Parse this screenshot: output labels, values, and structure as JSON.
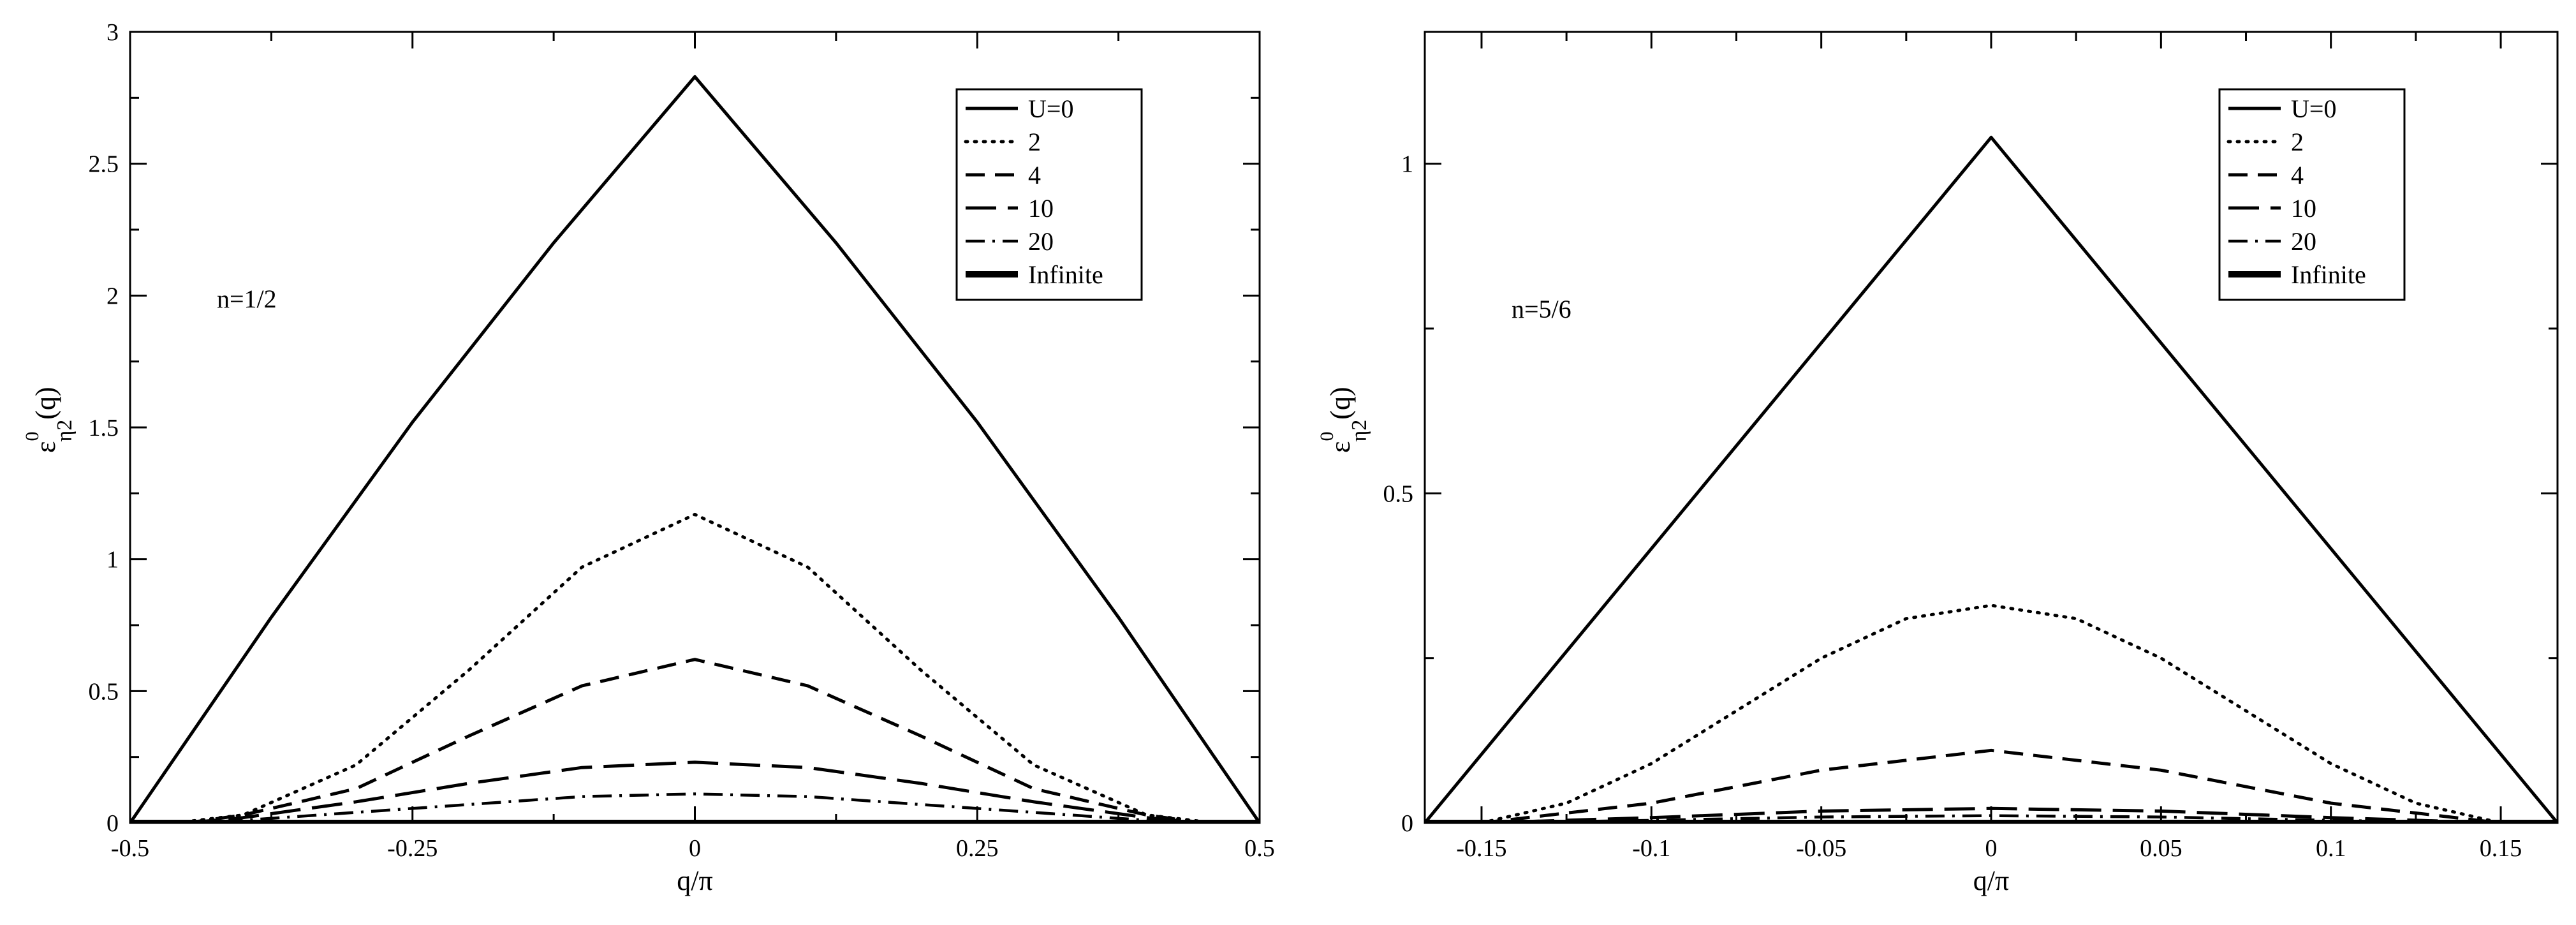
{
  "chart_data": [
    {
      "type": "line",
      "panel": "left",
      "annotation": "n=1/2",
      "xlabel": "q/π",
      "ylabel": {
        "base": "ε",
        "sup": "0",
        "sub": "η2",
        "tail": "(q)"
      },
      "xlim": [
        -0.5,
        0.5
      ],
      "ylim": [
        0,
        3
      ],
      "xticks": [
        -0.5,
        -0.25,
        0,
        0.25,
        0.5
      ],
      "xtick_labels": [
        "-0.5",
        "-0.25",
        "0",
        "0.25",
        "0.5"
      ],
      "yticks": [
        0,
        0.5,
        1,
        1.5,
        2,
        2.5,
        3
      ],
      "ytick_labels": [
        "0",
        "0.5",
        "1",
        "1.5",
        "2",
        "2.5",
        "3"
      ],
      "x_minor_ticks": [
        -0.375,
        -0.125,
        0.125,
        0.375
      ],
      "y_minor_ticks": [
        0.25,
        0.75,
        1.25,
        1.75,
        2.25,
        2.75
      ],
      "legend": {
        "position": "top-right"
      },
      "series": [
        {
          "name": "U=0",
          "style": "solid",
          "x": [
            -0.5,
            -0.375,
            -0.25,
            -0.125,
            0,
            0.125,
            0.25,
            0.375,
            0.5
          ],
          "y": [
            0,
            0.78,
            1.52,
            2.2,
            2.83,
            2.2,
            1.52,
            0.78,
            0
          ]
        },
        {
          "name": "2",
          "style": "dotted",
          "x": [
            -0.46,
            -0.4,
            -0.3,
            -0.2,
            -0.1,
            0,
            0.1,
            0.2,
            0.3,
            0.4,
            0.46
          ],
          "y": [
            0,
            0.03,
            0.22,
            0.58,
            0.97,
            1.17,
            0.97,
            0.58,
            0.22,
            0.03,
            0
          ]
        },
        {
          "name": "4",
          "style": "dashed",
          "x": [
            -0.45,
            -0.4,
            -0.3,
            -0.2,
            -0.1,
            0,
            0.1,
            0.2,
            0.3,
            0.4,
            0.45
          ],
          "y": [
            0,
            0.03,
            0.13,
            0.33,
            0.52,
            0.62,
            0.52,
            0.33,
            0.13,
            0.03,
            0
          ]
        },
        {
          "name": "10",
          "style": "long-dashed",
          "x": [
            -0.45,
            -0.4,
            -0.3,
            -0.2,
            -0.1,
            0,
            0.1,
            0.2,
            0.3,
            0.4,
            0.45
          ],
          "y": [
            0,
            0.02,
            0.08,
            0.15,
            0.21,
            0.23,
            0.21,
            0.15,
            0.08,
            0.02,
            0
          ]
        },
        {
          "name": "20",
          "style": "dash-dot",
          "x": [
            -0.45,
            -0.4,
            -0.3,
            -0.2,
            -0.1,
            0,
            0.1,
            0.2,
            0.3,
            0.4,
            0.45
          ],
          "y": [
            0,
            0.01,
            0.04,
            0.07,
            0.1,
            0.11,
            0.1,
            0.07,
            0.04,
            0.01,
            0
          ]
        },
        {
          "name": "Infinite",
          "style": "thick",
          "x": [
            -0.5,
            0.5
          ],
          "y": [
            0,
            0
          ]
        }
      ]
    },
    {
      "type": "line",
      "panel": "right",
      "annotation": "n=5/6",
      "xlabel": "q/π",
      "ylabel": {
        "base": "ε",
        "sup": "0",
        "sub": "η2",
        "tail": "(q)"
      },
      "xlim": [
        -0.1667,
        0.1667
      ],
      "ylim": [
        0,
        1.2
      ],
      "xticks": [
        -0.15,
        -0.1,
        -0.05,
        0,
        0.05,
        0.1,
        0.15
      ],
      "xtick_labels": [
        "-0.15",
        "-0.1",
        "-0.05",
        "0",
        "0.05",
        "0.1",
        "0.15"
      ],
      "yticks": [
        0,
        0.5,
        1
      ],
      "ytick_labels": [
        "0",
        "0.5",
        "1"
      ],
      "x_minor_ticks": [
        -0.125,
        -0.075,
        -0.025,
        0.025,
        0.075,
        0.125
      ],
      "y_minor_ticks": [
        0.25,
        0.75
      ],
      "legend": {
        "position": "top-right"
      },
      "series": [
        {
          "name": "U=0",
          "style": "solid",
          "x": [
            -0.1667,
            0,
            0.1667
          ],
          "y": [
            0,
            1.04,
            0
          ]
        },
        {
          "name": "2",
          "style": "dotted",
          "x": [
            -0.15,
            -0.125,
            -0.1,
            -0.075,
            -0.05,
            -0.025,
            0,
            0.025,
            0.05,
            0.075,
            0.1,
            0.125,
            0.15
          ],
          "y": [
            0,
            0.03,
            0.09,
            0.17,
            0.25,
            0.31,
            0.33,
            0.31,
            0.25,
            0.17,
            0.09,
            0.03,
            0
          ]
        },
        {
          "name": "4",
          "style": "dashed",
          "x": [
            -0.15,
            -0.1,
            -0.05,
            0,
            0.05,
            0.1,
            0.15
          ],
          "y": [
            0,
            0.03,
            0.08,
            0.11,
            0.08,
            0.03,
            0
          ]
        },
        {
          "name": "10",
          "style": "long-dashed",
          "x": [
            -0.15,
            -0.1,
            -0.05,
            0,
            0.05,
            0.1,
            0.15
          ],
          "y": [
            0,
            0.008,
            0.018,
            0.022,
            0.018,
            0.008,
            0
          ]
        },
        {
          "name": "20",
          "style": "dash-dot",
          "x": [
            -0.15,
            -0.1,
            -0.05,
            0,
            0.05,
            0.1,
            0.15
          ],
          "y": [
            0,
            0.004,
            0.009,
            0.011,
            0.009,
            0.004,
            0
          ]
        },
        {
          "name": "Infinite",
          "style": "thick",
          "x": [
            -0.1667,
            0.1667
          ],
          "y": [
            0,
            0
          ]
        }
      ]
    }
  ]
}
